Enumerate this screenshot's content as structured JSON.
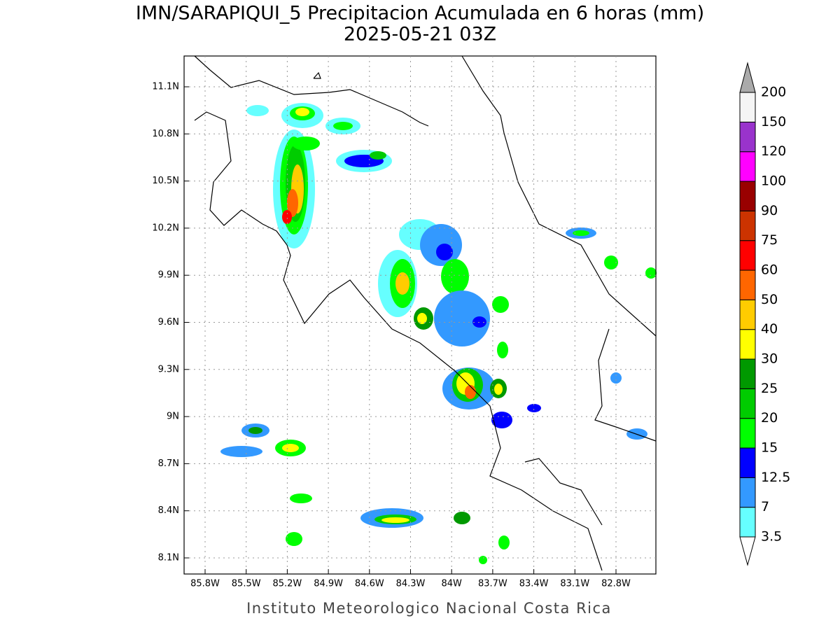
{
  "title": "IMN/SARAPIQUI_5 Precipitacion Acumulada en 6 horas (mm)",
  "subtitle": "2025-05-21 03Z",
  "lat_ticks": [
    "11.1N",
    "10.8N",
    "10.5N",
    "10.2N",
    "9.9N",
    "9.6N",
    "9.3N",
    "9N",
    "8.7N",
    "8.4N",
    "8.1N"
  ],
  "lon_ticks": [
    "85.8W",
    "85.5W",
    "85.2W",
    "84.9W",
    "84.6W",
    "84.3W",
    "84W",
    "83.7W",
    "83.4W",
    "83.1W",
    "82.8W"
  ],
  "legend": {
    "levels": [
      3.5,
      7,
      12.5,
      15,
      20,
      25,
      30,
      40,
      50,
      60,
      75,
      90,
      100,
      120,
      150,
      200
    ],
    "colors": [
      "#ffffff",
      "#66ffff",
      "#3399ff",
      "#0000ff",
      "#00ff00",
      "#00cc00",
      "#009900",
      "#ffff00",
      "#ffcc00",
      "#ff6600",
      "#ff0000",
      "#cc3300",
      "#990000",
      "#ff00ff",
      "#9933cc",
      "#f5f5f5",
      "#aaaaaa"
    ]
  },
  "footer": "Instituto Meteorologico Nacional Costa Rica"
}
